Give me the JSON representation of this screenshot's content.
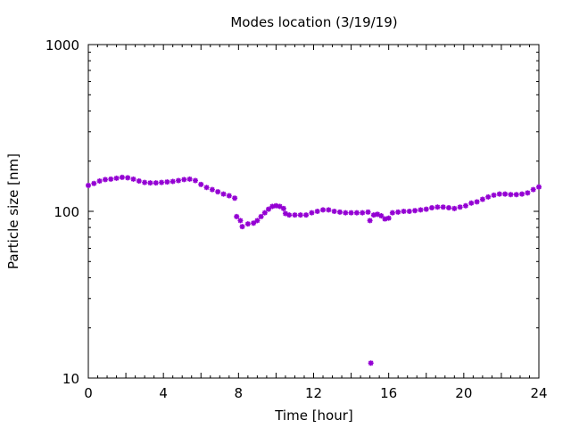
{
  "chart_data": {
    "type": "scatter",
    "title": "Modes location (3/19/19)",
    "xlabel": "Time [hour]",
    "ylabel": "Particle size [nm]",
    "xlim": [
      0,
      24
    ],
    "ylim": [
      10,
      1000
    ],
    "yscale": "log",
    "grid": false,
    "legend": "none",
    "marker_color": "#9400d3",
    "x_ticks": [
      0,
      4,
      8,
      12,
      16,
      20,
      24
    ],
    "x_tick_labels": [
      "0",
      "4",
      "8",
      "12",
      "16",
      "20",
      "24"
    ],
    "y_ticks": [
      10,
      100,
      1000
    ],
    "y_tick_labels": [
      "10",
      "100",
      "1000"
    ],
    "series": [
      {
        "points": [
          [
            0.0,
            143
          ],
          [
            0.3,
            147
          ],
          [
            0.6,
            152
          ],
          [
            0.9,
            155
          ],
          [
            1.2,
            156
          ],
          [
            1.5,
            158
          ],
          [
            1.8,
            160
          ],
          [
            2.1,
            159
          ],
          [
            2.4,
            156
          ],
          [
            2.7,
            152
          ],
          [
            3.0,
            149
          ],
          [
            3.3,
            148
          ],
          [
            3.6,
            148
          ],
          [
            3.9,
            149
          ],
          [
            4.2,
            150
          ],
          [
            4.5,
            151
          ],
          [
            4.8,
            153
          ],
          [
            5.1,
            155
          ],
          [
            5.4,
            156
          ],
          [
            5.7,
            153
          ],
          [
            6.0,
            145
          ],
          [
            6.3,
            139
          ],
          [
            6.6,
            135
          ],
          [
            6.9,
            131
          ],
          [
            7.2,
            127
          ],
          [
            7.5,
            124
          ],
          [
            7.8,
            120
          ],
          [
            7.9,
            93
          ],
          [
            8.1,
            88
          ],
          [
            8.2,
            81
          ],
          [
            8.5,
            84
          ],
          [
            8.8,
            85
          ],
          [
            9.0,
            88
          ],
          [
            9.2,
            93
          ],
          [
            9.4,
            98
          ],
          [
            9.6,
            103
          ],
          [
            9.8,
            107
          ],
          [
            10.0,
            108
          ],
          [
            10.2,
            107
          ],
          [
            10.4,
            104
          ],
          [
            10.5,
            97
          ],
          [
            10.7,
            95
          ],
          [
            11.0,
            95
          ],
          [
            11.3,
            95
          ],
          [
            11.6,
            95
          ],
          [
            11.9,
            98
          ],
          [
            12.2,
            100
          ],
          [
            12.5,
            102
          ],
          [
            12.8,
            102
          ],
          [
            13.1,
            100
          ],
          [
            13.4,
            99
          ],
          [
            13.7,
            98
          ],
          [
            14.0,
            98
          ],
          [
            14.3,
            98
          ],
          [
            14.6,
            98
          ],
          [
            14.9,
            99
          ],
          [
            15.0,
            88
          ],
          [
            15.05,
            12.3
          ],
          [
            15.2,
            95
          ],
          [
            15.4,
            96
          ],
          [
            15.6,
            94
          ],
          [
            15.8,
            90
          ],
          [
            16.0,
            91
          ],
          [
            16.2,
            98
          ],
          [
            16.5,
            99
          ],
          [
            16.8,
            100
          ],
          [
            17.1,
            100
          ],
          [
            17.4,
            101
          ],
          [
            17.7,
            102
          ],
          [
            18.0,
            103
          ],
          [
            18.3,
            105
          ],
          [
            18.6,
            106
          ],
          [
            18.9,
            106
          ],
          [
            19.2,
            105
          ],
          [
            19.5,
            104
          ],
          [
            19.8,
            106
          ],
          [
            20.1,
            108
          ],
          [
            20.4,
            112
          ],
          [
            20.7,
            114
          ],
          [
            21.0,
            118
          ],
          [
            21.3,
            122
          ],
          [
            21.6,
            125
          ],
          [
            21.9,
            127
          ],
          [
            22.2,
            127
          ],
          [
            22.5,
            126
          ],
          [
            22.8,
            126
          ],
          [
            23.1,
            127
          ],
          [
            23.4,
            129
          ],
          [
            23.7,
            135
          ],
          [
            24.0,
            140
          ]
        ]
      }
    ]
  }
}
